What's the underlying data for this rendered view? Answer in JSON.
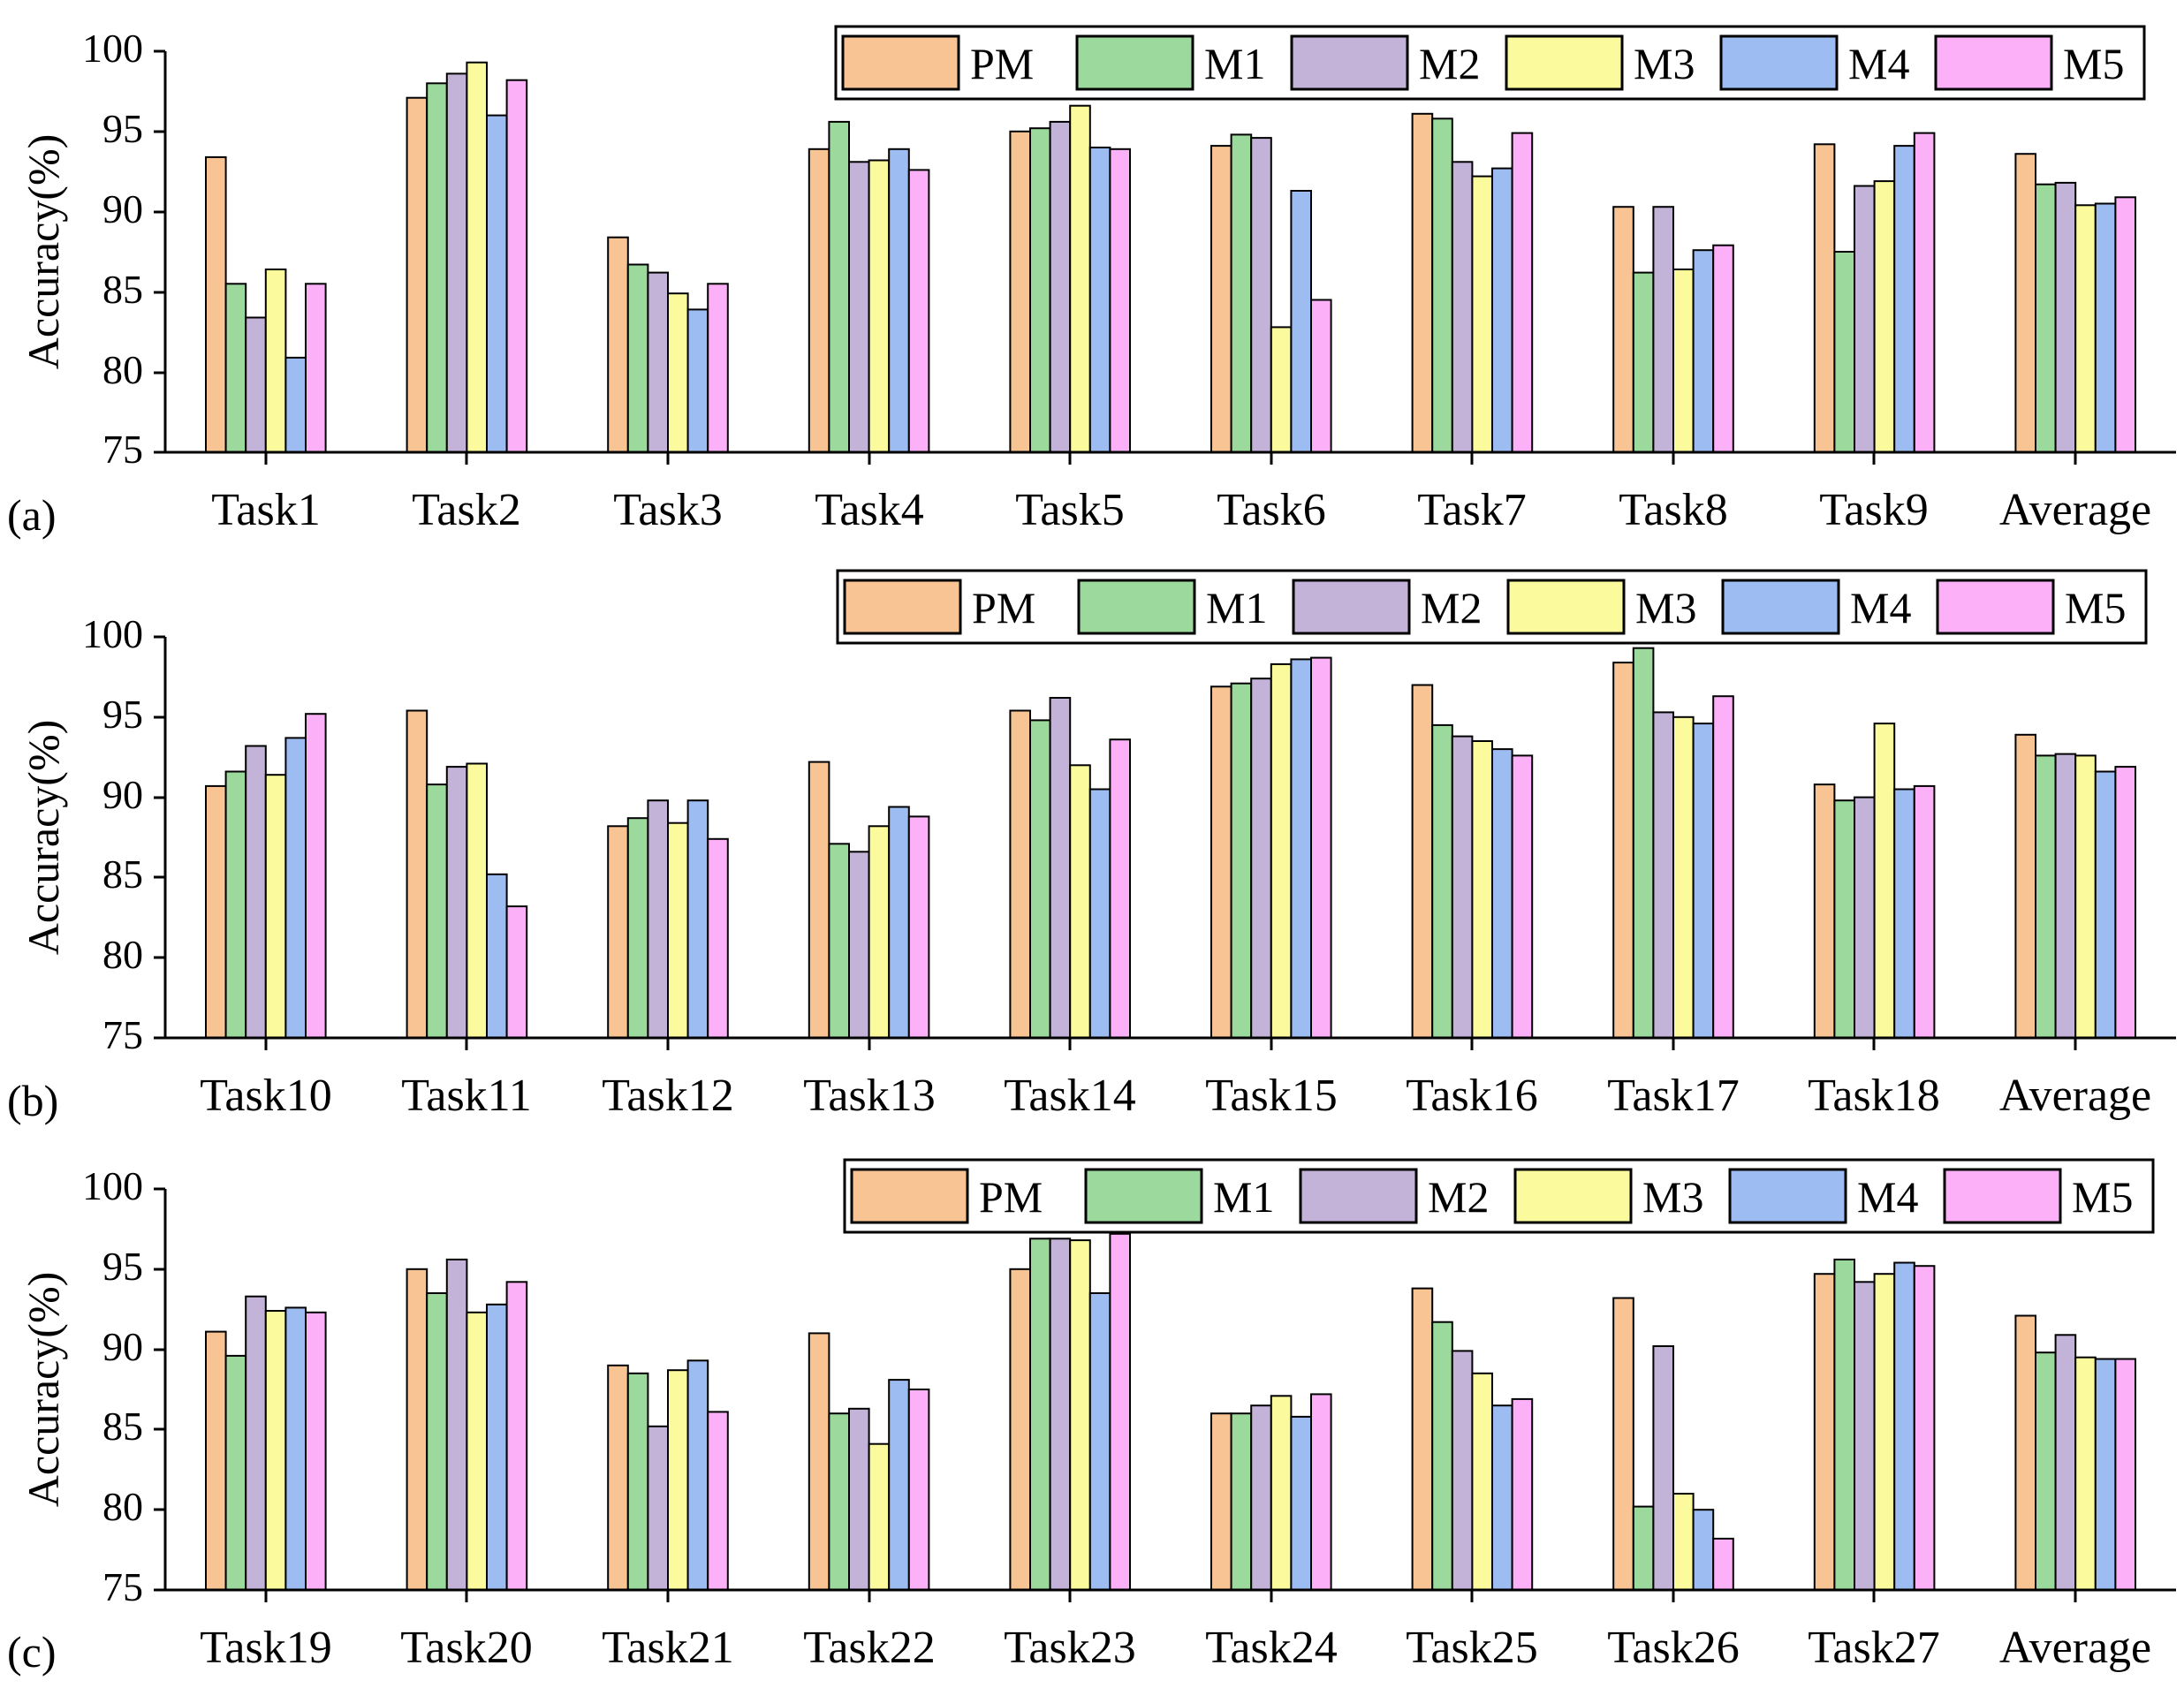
{
  "figure": {
    "colors": {
      "PM": "#f9c494",
      "M1": "#9cd99c",
      "M2": "#c4b3d9",
      "M3": "#fbfb9d",
      "M4": "#9cbcf2",
      "M5": "#fcb0f7"
    }
  },
  "chart_data": [
    {
      "type": "bar",
      "panel_label": "(a)",
      "ylabel": "Accuracy(%)",
      "xlabel": "",
      "ylim": [
        75,
        100
      ],
      "yticks": [
        "75",
        "80",
        "85",
        "90",
        "95",
        "100"
      ],
      "legend": "top-right",
      "categories": [
        "Task1",
        "Task2",
        "Task3",
        "Task4",
        "Task5",
        "Task6",
        "Task7",
        "Task8",
        "Task9",
        "Average"
      ],
      "series": [
        {
          "name": "PM",
          "values": [
            93.4,
            97.1,
            88.4,
            93.9,
            95.0,
            94.1,
            96.1,
            90.3,
            94.2,
            93.6
          ]
        },
        {
          "name": "M1",
          "values": [
            85.5,
            98.0,
            86.7,
            95.6,
            95.2,
            94.8,
            95.8,
            86.2,
            87.5,
            91.7
          ]
        },
        {
          "name": "M2",
          "values": [
            83.4,
            98.6,
            86.2,
            93.1,
            95.6,
            94.6,
            93.1,
            90.3,
            91.6,
            91.8
          ]
        },
        {
          "name": "M3",
          "values": [
            86.4,
            99.3,
            84.9,
            93.2,
            96.6,
            82.8,
            92.2,
            86.4,
            91.9,
            90.4
          ]
        },
        {
          "name": "M4",
          "values": [
            80.9,
            96.0,
            83.9,
            93.9,
            94.0,
            91.3,
            92.7,
            87.6,
            94.1,
            90.5
          ]
        },
        {
          "name": "M5",
          "values": [
            85.5,
            98.2,
            85.5,
            92.6,
            93.9,
            84.5,
            94.9,
            87.9,
            94.9,
            90.9
          ]
        }
      ]
    },
    {
      "type": "bar",
      "panel_label": "(b)",
      "ylabel": "Accuracy(%)",
      "xlabel": "",
      "ylim": [
        75,
        100
      ],
      "yticks": [
        "75",
        "80",
        "85",
        "90",
        "95",
        "100"
      ],
      "legend": "top-right",
      "categories": [
        "Task10",
        "Task11",
        "Task12",
        "Task13",
        "Task14",
        "Task15",
        "Task16",
        "Task17",
        "Task18",
        "Average"
      ],
      "series": [
        {
          "name": "PM",
          "values": [
            90.7,
            95.4,
            88.2,
            92.2,
            95.4,
            96.9,
            97.0,
            98.4,
            90.8,
            93.9
          ]
        },
        {
          "name": "M1",
          "values": [
            91.6,
            90.8,
            88.7,
            87.1,
            94.8,
            97.1,
            94.5,
            99.3,
            89.8,
            92.6
          ]
        },
        {
          "name": "M2",
          "values": [
            93.2,
            91.9,
            89.8,
            86.6,
            96.2,
            97.4,
            93.8,
            95.3,
            90.0,
            92.7
          ]
        },
        {
          "name": "M3",
          "values": [
            91.4,
            92.1,
            88.4,
            88.2,
            92.0,
            98.3,
            93.5,
            95.0,
            94.6,
            92.6
          ]
        },
        {
          "name": "M4",
          "values": [
            93.7,
            85.2,
            89.8,
            89.4,
            90.5,
            98.6,
            93.0,
            94.6,
            90.5,
            91.6
          ]
        },
        {
          "name": "M5",
          "values": [
            95.2,
            83.2,
            87.4,
            88.8,
            93.6,
            98.7,
            92.6,
            96.3,
            90.7,
            91.9
          ]
        }
      ]
    },
    {
      "type": "bar",
      "panel_label": "(c)",
      "ylabel": "Accuracy(%)",
      "xlabel": "",
      "ylim": [
        75,
        100
      ],
      "yticks": [
        "75",
        "80",
        "85",
        "90",
        "95",
        "100"
      ],
      "legend": "top-right",
      "categories": [
        "Task19",
        "Task20",
        "Task21",
        "Task22",
        "Task23",
        "Task24",
        "Task25",
        "Task26",
        "Task27",
        "Average"
      ],
      "series": [
        {
          "name": "PM",
          "values": [
            91.1,
            95.0,
            89.0,
            91.0,
            95.0,
            86.0,
            93.8,
            93.2,
            94.7,
            92.1
          ]
        },
        {
          "name": "M1",
          "values": [
            89.6,
            93.5,
            88.5,
            86.0,
            96.9,
            86.0,
            91.7,
            80.2,
            95.6,
            89.8
          ]
        },
        {
          "name": "M2",
          "values": [
            93.3,
            95.6,
            85.2,
            86.3,
            96.9,
            86.5,
            89.9,
            90.2,
            94.2,
            90.9
          ]
        },
        {
          "name": "M3",
          "values": [
            92.4,
            92.3,
            88.7,
            84.1,
            96.8,
            87.1,
            88.5,
            81.0,
            94.7,
            89.5
          ]
        },
        {
          "name": "M4",
          "values": [
            92.6,
            92.8,
            89.3,
            88.1,
            93.5,
            85.8,
            86.5,
            80.0,
            95.4,
            89.4
          ]
        },
        {
          "name": "M5",
          "values": [
            92.3,
            94.2,
            86.1,
            87.5,
            97.2,
            87.2,
            86.9,
            78.2,
            95.2,
            89.4
          ]
        }
      ]
    }
  ]
}
